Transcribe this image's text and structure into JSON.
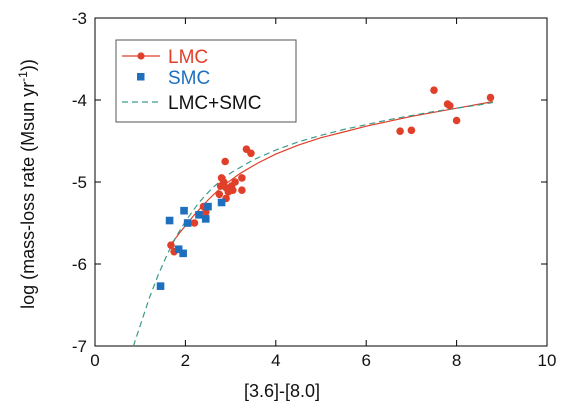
{
  "chart_data": {
    "type": "scatter",
    "xlabel": "[3.6]-[8.0]",
    "ylabel_main": "log (mass-loss rate (Msun yr",
    "ylabel_sup": "-1",
    "ylabel_close": "))",
    "xlim": [
      0,
      10
    ],
    "ylim": [
      -7,
      -3
    ],
    "x_ticks": [
      0,
      2,
      4,
      6,
      8,
      10
    ],
    "y_ticks": [
      -7,
      -6,
      -5,
      -4,
      -3
    ],
    "x_tick_labels": [
      "0",
      "2",
      "4",
      "6",
      "8",
      "10"
    ],
    "y_tick_labels": [
      "-7",
      "-6",
      "-5",
      "-4",
      "-3"
    ],
    "grid": false,
    "legend_position": "top-left",
    "series": [
      {
        "name": "LMC",
        "kind": "points+line",
        "color": "#e0402a",
        "marker": "circle",
        "points": [
          [
            1.68,
            -5.77
          ],
          [
            1.75,
            -5.85
          ],
          [
            2.2,
            -5.5
          ],
          [
            2.4,
            -5.3
          ],
          [
            2.45,
            -5.37
          ],
          [
            2.75,
            -5.15
          ],
          [
            2.78,
            -5.05
          ],
          [
            2.8,
            -4.95
          ],
          [
            2.85,
            -5.0
          ],
          [
            2.88,
            -4.75
          ],
          [
            2.9,
            -5.07
          ],
          [
            2.9,
            -5.2
          ],
          [
            2.95,
            -5.12
          ],
          [
            3.02,
            -5.05
          ],
          [
            3.05,
            -5.1
          ],
          [
            3.1,
            -5.0
          ],
          [
            3.25,
            -4.95
          ],
          [
            3.25,
            -5.1
          ],
          [
            3.35,
            -4.6
          ],
          [
            3.45,
            -4.65
          ],
          [
            6.75,
            -4.38
          ],
          [
            7.0,
            -4.37
          ],
          [
            7.5,
            -3.88
          ],
          [
            7.8,
            -4.05
          ],
          [
            7.85,
            -4.07
          ],
          [
            8.0,
            -4.25
          ],
          [
            8.75,
            -3.97
          ]
        ]
      },
      {
        "name": "SMC",
        "kind": "points",
        "color": "#1f6fbf",
        "marker": "square",
        "points": [
          [
            1.45,
            -6.27
          ],
          [
            1.65,
            -5.47
          ],
          [
            1.85,
            -5.82
          ],
          [
            1.95,
            -5.87
          ],
          [
            1.97,
            -5.35
          ],
          [
            2.05,
            -5.5
          ],
          [
            2.3,
            -5.4
          ],
          [
            2.45,
            -5.45
          ],
          [
            2.5,
            -5.3
          ],
          [
            2.8,
            -5.25
          ]
        ]
      }
    ],
    "fits": [
      {
        "name": "LMC",
        "color": "#e0402a",
        "style": "solid",
        "x": [
          1.65,
          1.9,
          2.2,
          2.5,
          2.8,
          3.2,
          3.6,
          4.0,
          4.5,
          5.0,
          5.5,
          6.0,
          6.5,
          7.0,
          7.5,
          8.0,
          8.5,
          8.8
        ],
        "y": [
          -5.78,
          -5.6,
          -5.4,
          -5.22,
          -5.06,
          -4.9,
          -4.77,
          -4.66,
          -4.55,
          -4.46,
          -4.39,
          -4.32,
          -4.26,
          -4.2,
          -4.15,
          -4.1,
          -4.05,
          -4.02
        ]
      },
      {
        "name": "LMC+SMC",
        "color": "#3a9a8a",
        "style": "dashed",
        "x": [
          0.85,
          1.0,
          1.2,
          1.4,
          1.6,
          1.8,
          2.0,
          2.3,
          2.6,
          3.0,
          3.5,
          4.0,
          4.5,
          5.0,
          5.5,
          6.0,
          6.5,
          7.0,
          7.5,
          8.0,
          8.5,
          8.8
        ],
        "y": [
          -7.0,
          -6.75,
          -6.42,
          -6.13,
          -5.88,
          -5.66,
          -5.48,
          -5.25,
          -5.07,
          -4.89,
          -4.73,
          -4.61,
          -4.51,
          -4.43,
          -4.36,
          -4.3,
          -4.24,
          -4.19,
          -4.14,
          -4.1,
          -4.06,
          -4.03
        ]
      }
    ]
  },
  "legend": {
    "lmc_label": "LMC",
    "smc_label": "SMC",
    "combined_label": "LMC+SMC"
  }
}
